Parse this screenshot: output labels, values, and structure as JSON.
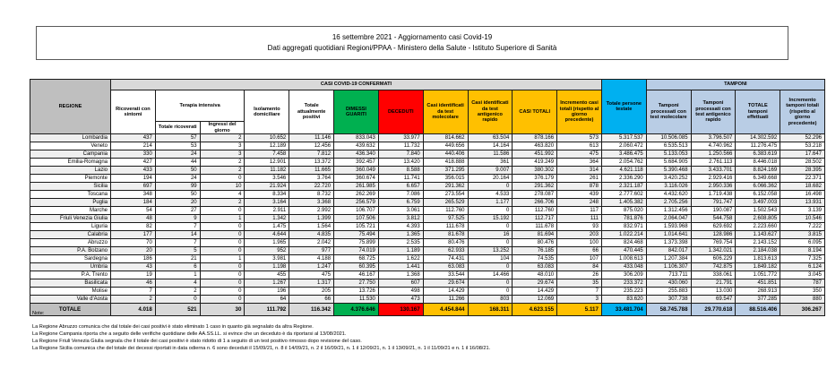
{
  "title": {
    "line1": "16 settembre 2021 - Aggiornamento casi Covid-19",
    "line2": "Dati aggregati quotidiani Regioni/PPAA - Ministero della Salute - Istituto Superiore di Sanità"
  },
  "colors": {
    "header_gray": "#bfbfbf",
    "header_light_gray": "#d9d9d9",
    "green_dimessi": "#00b050",
    "red_deceduti": "#ff0000",
    "yellow_casi": "#ffc000",
    "cyan_testate": "#00b0f0",
    "blue_tamponi": "#b9cde5"
  },
  "table": {
    "headers": {
      "regione": "REGIONE",
      "confermati_group": "CASI COVID-19 CONFERMATI",
      "tamponi_group": "TAMPONI",
      "ricoverati": "Ricoverati con sintomi",
      "terapia_intensiva": "Terapia intensiva",
      "ti_totale": "Totale ricoverati",
      "ti_ingressi": "Ingressi del giorno",
      "isolamento": "Isolamento domiciliare",
      "attualmente_positivi": "Totale attualmente positivi",
      "dimessi": "DIMESSI GUARITI",
      "deceduti": "DECEDUTI",
      "casi_molecolare": "Casi identificati da test molecolare",
      "casi_antigenico": "Casi identificati da test antigenico rapido",
      "casi_totali": "CASI TOTALI",
      "incremento_casi": "Incremento casi totali (rispetto al giorno precedente)",
      "persone_testate": "Totale persone testate",
      "tamponi_molecolare": "Tamponi processati con test molecolare",
      "tamponi_antigenico": "Tamponi processati con test antigenico rapido",
      "tamponi_totale": "TOTALE tamponi effettuati",
      "incremento_tamponi": "Incremento tamponi totali (rispetto al giorno precedente)"
    },
    "rows": [
      {
        "name": "Lombardia",
        "values": [
          "437",
          "57",
          "2",
          "10.652",
          "11.146",
          "833.043",
          "33.977",
          "814.662",
          "63.504",
          "878.166",
          "573",
          "5.317.537",
          "10.506.085",
          "3.796.507",
          "14.302.592",
          "52.296"
        ]
      },
      {
        "name": "Veneto",
        "values": [
          "214",
          "53",
          "3",
          "12.189",
          "12.456",
          "439.632",
          "11.732",
          "449.656",
          "14.164",
          "463.820",
          "613",
          "2.060.472",
          "6.535.513",
          "4.740.962",
          "11.276.475",
          "53.218"
        ]
      },
      {
        "name": "Campania",
        "values": [
          "330",
          "24",
          "3",
          "7.458",
          "7.812",
          "436.340",
          "7.840",
          "440.406",
          "11.586",
          "451.992",
          "475",
          "3.486.475",
          "5.133.053",
          "1.250.566",
          "6.383.619",
          "17.647"
        ]
      },
      {
        "name": "Emilia-Romagna",
        "values": [
          "427",
          "44",
          "2",
          "12.901",
          "13.372",
          "392.457",
          "13.420",
          "418.888",
          "361",
          "419.249",
          "364",
          "2.054.762",
          "5.684.905",
          "2.761.113",
          "8.446.018",
          "28.502"
        ]
      },
      {
        "name": "Lazio",
        "values": [
          "433",
          "50",
          "2",
          "11.182",
          "11.665",
          "360.049",
          "8.588",
          "371.295",
          "9.007",
          "380.302",
          "314",
          "4.621.118",
          "5.390.468",
          "3.433.701",
          "8.824.169",
          "28.395"
        ]
      },
      {
        "name": "Piemonte",
        "values": [
          "194",
          "24",
          "0",
          "3.546",
          "3.764",
          "360.674",
          "11.741",
          "356.015",
          "20.164",
          "376.179",
          "261",
          "2.336.290",
          "3.420.252",
          "2.929.416",
          "6.349.668",
          "22.371"
        ]
      },
      {
        "name": "Sicilia",
        "values": [
          "697",
          "99",
          "10",
          "21.924",
          "22.720",
          "261.985",
          "6.657",
          "291.362",
          "0",
          "291.362",
          "878",
          "2.321.187",
          "3.116.026",
          "2.950.336",
          "6.066.362",
          "18.682"
        ]
      },
      {
        "name": "Toscana",
        "values": [
          "348",
          "50",
          "4",
          "8.334",
          "8.732",
          "262.269",
          "7.086",
          "273.554",
          "4.533",
          "278.087",
          "439",
          "2.777.602",
          "4.432.620",
          "1.719.438",
          "6.152.058",
          "16.498"
        ]
      },
      {
        "name": "Puglia",
        "values": [
          "184",
          "20",
          "2",
          "3.164",
          "3.368",
          "256.579",
          "6.759",
          "265.529",
          "1.177",
          "266.706",
          "248",
          "1.405.382",
          "2.705.256",
          "791.747",
          "3.497.003",
          "13.931"
        ]
      },
      {
        "name": "Marche",
        "values": [
          "54",
          "27",
          "0",
          "2.911",
          "2.992",
          "106.707",
          "3.061",
          "112.760",
          "0",
          "112.760",
          "117",
          "875.020",
          "1.312.456",
          "190.087",
          "1.502.543",
          "3.139"
        ]
      },
      {
        "name": "Friuli Venezia Giulia",
        "values": [
          "48",
          "9",
          "1",
          "1.342",
          "1.399",
          "107.506",
          "3.812",
          "97.525",
          "15.192",
          "112.717",
          "111",
          "781.876",
          "2.064.047",
          "544.758",
          "2.608.805",
          "10.546"
        ]
      },
      {
        "name": "Liguria",
        "values": [
          "82",
          "7",
          "0",
          "1.475",
          "1.564",
          "105.721",
          "4.393",
          "111.678",
          "0",
          "111.678",
          "93",
          "832.971",
          "1.593.968",
          "629.692",
          "2.223.660",
          "7.222"
        ]
      },
      {
        "name": "Calabria",
        "values": [
          "177",
          "14",
          "0",
          "4.644",
          "4.835",
          "75.494",
          "1.365",
          "81.678",
          "16",
          "81.694",
          "203",
          "1.022.214",
          "1.014.641",
          "128.986",
          "1.143.627",
          "3.815"
        ]
      },
      {
        "name": "Abruzzo",
        "values": [
          "70",
          "7",
          "0",
          "1.965",
          "2.042",
          "75.899",
          "2.535",
          "80.476",
          "0",
          "80.476",
          "100",
          "824.468",
          "1.373.398",
          "769.754",
          "2.143.152",
          "6.095"
        ]
      },
      {
        "name": "P.A. Bolzano",
        "values": [
          "20",
          "5",
          "0",
          "952",
          "977",
          "74.019",
          "1.189",
          "62.933",
          "13.252",
          "76.185",
          "66",
          "470.445",
          "842.017",
          "1.342.021",
          "2.184.038",
          "8.194"
        ]
      },
      {
        "name": "Sardegna",
        "values": [
          "186",
          "21",
          "1",
          "3.981",
          "4.188",
          "68.725",
          "1.622",
          "74.431",
          "104",
          "74.535",
          "107",
          "1.008.613",
          "1.207.384",
          "606.229",
          "1.813.613",
          "7.325"
        ]
      },
      {
        "name": "Umbria",
        "values": [
          "43",
          "6",
          "0",
          "1.198",
          "1.247",
          "60.395",
          "1.441",
          "63.083",
          "0",
          "63.083",
          "84",
          "433.048",
          "1.106.307",
          "742.875",
          "1.849.182",
          "6.124"
        ]
      },
      {
        "name": "P.A. Trento",
        "values": [
          "19",
          "1",
          "0",
          "455",
          "475",
          "46.167",
          "1.368",
          "33.544",
          "14.466",
          "48.010",
          "26",
          "306.209",
          "713.711",
          "338.061",
          "1.051.772",
          "3.045"
        ]
      },
      {
        "name": "Basilicata",
        "values": [
          "46",
          "4",
          "0",
          "1.267",
          "1.317",
          "27.750",
          "607",
          "29.674",
          "0",
          "29.674",
          "35",
          "233.372",
          "430.060",
          "21.791",
          "451.851",
          "787"
        ]
      },
      {
        "name": "Molise",
        "values": [
          "7",
          "2",
          "0",
          "196",
          "205",
          "13.726",
          "498",
          "14.429",
          "0",
          "14.429",
          "7",
          "235.223",
          "255.883",
          "13.030",
          "268.913",
          "350"
        ]
      },
      {
        "name": "Valle d'Aosta",
        "values": [
          "2",
          "0",
          "0",
          "64",
          "66",
          "11.530",
          "473",
          "11.266",
          "803",
          "12.069",
          "3",
          "83.620",
          "307.738",
          "69.547",
          "377.285",
          "880"
        ]
      }
    ],
    "totale": {
      "label": "TOTALE",
      "values": [
        "4.018",
        "521",
        "30",
        "111.792",
        "116.342",
        "4.376.646",
        "130.167",
        "4.454.844",
        "168.311",
        "4.623.155",
        "5.117",
        "33.481.704",
        "58.745.788",
        "29.770.618",
        "88.516.406",
        "306.267"
      ]
    }
  },
  "notes": {
    "heading": "Note:",
    "lines": [
      "La Regione Abruzzo comunica che dal totale dei casi positivi è stato eliminato 1 caso in quanto già segnalato da altra Regione.",
      "La Regione Campania riporta che a seguito delle verifiche quotidiane delle AA.SS.LL. si evince che un deceduto è da riportarsi al 13/08/2021.",
      "La Regione Friuli Venezia Giulia segnala che il totale dei casi positivi è stato ridotto di 1 a seguito di un test positivo rimosso dopo revisione del caso.",
      "La Regione Sicilia comunica che del totale dei decessi riportati in data odierna n. 6 sono deceduti il 15/09/21, n. 8 il 14/09/21, n. 2 il 16/09/21, n. 1 il 12/09/21, n. 1 il 13/09/21, n. 1 il 11/09/21 e n. 1 il 16/08/21."
    ]
  }
}
